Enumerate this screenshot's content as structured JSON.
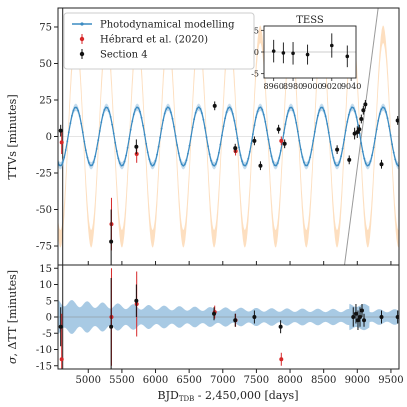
{
  "chart_data": [
    {
      "type": "line",
      "panel": "top",
      "xlabel_main": "BJD",
      "xlabel_sub": "TDB",
      "xlabel_rest": " - 2,450,000 [days]",
      "ylabel": "TTVs [minutes]",
      "xlim": [
        4550,
        9620
      ],
      "ylim": [
        -88,
        88
      ],
      "x_ticks": [
        5000,
        5500,
        6000,
        6500,
        7000,
        7500,
        8000,
        8500,
        9000,
        9500
      ],
      "y_ticks": [
        -75,
        -50,
        -25,
        0,
        25,
        50,
        75
      ],
      "legend_position": "top-left",
      "series": [
        {
          "name": "Photodynamical modelling",
          "color": "#3b8bc2",
          "model": {
            "amplitude": 20,
            "period": 457,
            "phase_x": 4700
          },
          "band": {
            "amplitude": 70,
            "color": "#fdd9b5"
          }
        },
        {
          "name": "Hébrard et al. (2020)",
          "color": "#d62728",
          "points": [
            {
              "x": 4605,
              "y": -4,
              "err": 8
            },
            {
              "x": 5345,
              "y": -60,
              "err": 18
            },
            {
              "x": 5720,
              "y": -12,
              "err": 6
            },
            {
              "x": 7190,
              "y": -10,
              "err": 3
            },
            {
              "x": 7870,
              "y": -3,
              "err": 3
            }
          ]
        },
        {
          "name": "Section 4",
          "color": "#111111",
          "points": [
            {
              "x": 4590,
              "y": 4,
              "err": 4
            },
            {
              "x": 5340,
              "y": -72,
              "err": 22
            },
            {
              "x": 5715,
              "y": -7,
              "err": 5
            },
            {
              "x": 6880,
              "y": 21,
              "err": 3
            },
            {
              "x": 7185,
              "y": -8,
              "err": 3
            },
            {
              "x": 7470,
              "y": -3,
              "err": 3
            },
            {
              "x": 7560,
              "y": -20,
              "err": 3
            },
            {
              "x": 7830,
              "y": 5,
              "err": 3
            },
            {
              "x": 7920,
              "y": -5,
              "err": 3
            },
            {
              "x": 8700,
              "y": -9,
              "err": 3
            },
            {
              "x": 8880,
              "y": -16,
              "err": 3
            },
            {
              "x": 8960,
              "y": 2,
              "err": 4
            },
            {
              "x": 9000,
              "y": 3,
              "err": 4
            },
            {
              "x": 9030,
              "y": 5,
              "err": 3
            },
            {
              "x": 9060,
              "y": 12,
              "err": 3
            },
            {
              "x": 9090,
              "y": 18,
              "err": 3
            },
            {
              "x": 9120,
              "y": 22,
              "err": 3
            },
            {
              "x": 9360,
              "y": -19,
              "err": 3
            },
            {
              "x": 9600,
              "y": 11,
              "err": 3
            }
          ]
        }
      ],
      "guide_lines": [
        {
          "name": "vertical-line",
          "color": "#222222",
          "x": 4620
        },
        {
          "name": "diagonal-line",
          "color": "#9a9a9a",
          "x1": 8810,
          "y1": -88,
          "x2": 9310,
          "y2": 88
        }
      ]
    },
    {
      "type": "scatter",
      "panel": "inset",
      "title": "TESS",
      "xlim": [
        8950,
        9045
      ],
      "ylim": [
        -6,
        6
      ],
      "x_ticks": [
        8960,
        8980,
        9000,
        9020,
        9040
      ],
      "y_ticks": [
        -5,
        0,
        5
      ],
      "points": [
        {
          "x": 8960,
          "y": 0.2,
          "err": 2.6
        },
        {
          "x": 8970,
          "y": -0.2,
          "err": 2.4
        },
        {
          "x": 8980,
          "y": -0.3,
          "err": 2.6
        },
        {
          "x": 8995,
          "y": -0.6,
          "err": 2.3
        },
        {
          "x": 9020,
          "y": 1.5,
          "err": 2.8
        },
        {
          "x": 9036,
          "y": -1.0,
          "err": 2.5
        }
      ]
    },
    {
      "type": "scatter",
      "panel": "bottom",
      "ylabel_sigma": "σ",
      "ylabel_rest": ", ΔTT [minutes]",
      "xlim": [
        4550,
        9620
      ],
      "ylim": [
        -16,
        16
      ],
      "x_ticks": [
        5000,
        5500,
        6000,
        6500,
        7000,
        7500,
        8000,
        8500,
        9000,
        9500
      ],
      "y_ticks": [
        -15,
        -10,
        -5,
        0,
        5,
        10,
        15
      ],
      "band": {
        "color": "#9ec4e1",
        "base": 1.8,
        "start": 4.5
      },
      "series": [
        {
          "name": "Hébrard et al. (2020)",
          "color": "#d62728",
          "points": [
            {
              "x": 4605,
              "y": -13,
              "err": 14
            },
            {
              "x": 5345,
              "y": 0,
              "err": 15
            },
            {
              "x": 5720,
              "y": 4,
              "err": 10
            },
            {
              "x": 6880,
              "y": 1.5,
              "err": 2
            },
            {
              "x": 7190,
              "y": -1,
              "err": 2
            },
            {
              "x": 7870,
              "y": -13,
              "err": 2
            }
          ]
        },
        {
          "name": "Section 4",
          "color": "#111111",
          "points": [
            {
              "x": 4590,
              "y": -3,
              "err": 6
            },
            {
              "x": 5340,
              "y": -3,
              "err": 15
            },
            {
              "x": 5715,
              "y": 5,
              "err": 5
            },
            {
              "x": 6870,
              "y": 1,
              "err": 2
            },
            {
              "x": 7185,
              "y": -1,
              "err": 2
            },
            {
              "x": 7470,
              "y": 0,
              "err": 2
            },
            {
              "x": 7860,
              "y": -3,
              "err": 2
            },
            {
              "x": 8940,
              "y": 0,
              "err": 3
            },
            {
              "x": 8980,
              "y": 1,
              "err": 3
            },
            {
              "x": 9010,
              "y": -1,
              "err": 3
            },
            {
              "x": 9040,
              "y": 0,
              "err": 3
            },
            {
              "x": 9070,
              "y": 2,
              "err": 2
            },
            {
              "x": 9100,
              "y": -1,
              "err": 2
            },
            {
              "x": 9360,
              "y": 0,
              "err": 2
            },
            {
              "x": 9600,
              "y": 0,
              "err": 2
            }
          ]
        }
      ]
    }
  ]
}
